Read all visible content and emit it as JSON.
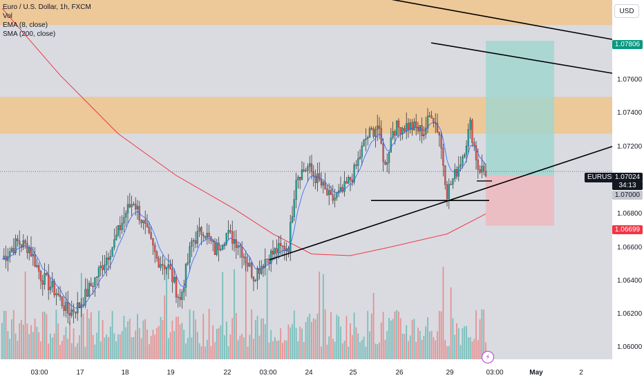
{
  "header": {
    "symbol_line": "Euro / U.S. Dollar, 1h, FXCM",
    "indicators": [
      "Vol",
      "EMA (8, close)",
      "SMA (200, close)"
    ],
    "currency_button": "USD"
  },
  "price_axis": {
    "ticks": [
      "1.07600",
      "1.07400",
      "1.07200",
      "1.07000",
      "1.06800",
      "1.06600",
      "1.06400",
      "1.06200",
      "1.06000"
    ]
  },
  "price_tags": {
    "upper": {
      "label": "1.07806",
      "bg": "#089981",
      "fg": "#ffffff"
    },
    "current": {
      "label": "1.07024",
      "sub": "34:13",
      "bg": "#131722",
      "fg": "#ffffff"
    },
    "entry": {
      "label": "1.07000",
      "bg": "#c7c9d1",
      "fg": "#131722"
    },
    "stop": {
      "label": "1.06699",
      "bg": "#f23645",
      "fg": "#ffffff"
    },
    "symbol": "EURUSD"
  },
  "time_axis": {
    "labels": [
      {
        "text": "03:00",
        "bold": false
      },
      {
        "text": "17",
        "bold": false
      },
      {
        "text": "18",
        "bold": false
      },
      {
        "text": "19",
        "bold": false
      },
      {
        "text": "22",
        "bold": false
      },
      {
        "text": "03:00",
        "bold": false
      },
      {
        "text": "24",
        "bold": false
      },
      {
        "text": "25",
        "bold": false
      },
      {
        "text": "26",
        "bold": false
      },
      {
        "text": "29",
        "bold": false
      },
      {
        "text": "03:00",
        "bold": false
      },
      {
        "text": "May",
        "bold": true
      },
      {
        "text": "2",
        "bold": false
      }
    ]
  },
  "colors": {
    "up": "#26a69a",
    "down": "#ef5350",
    "ema": "#2962ff",
    "sma": "#f23645",
    "zone": "#f0c48c",
    "profit": "#9fd6cf",
    "loss": "#efb7bd",
    "chart_bg": "#d9dbe1"
  },
  "chart_data": {
    "type": "candlestick",
    "title": "Euro / U.S. Dollar, 1h, FXCM",
    "symbol": "EURUSD",
    "ylim": [
      1.059,
      1.0805
    ],
    "x_ticks": [
      "03:00",
      "17",
      "18",
      "19",
      "22",
      "03:00",
      "24",
      "25",
      "26",
      "29",
      "03:00",
      "May",
      "2"
    ],
    "y_ticks": [
      1.076,
      1.074,
      1.072,
      1.07,
      1.068,
      1.066,
      1.064,
      1.062,
      1.06
    ],
    "close_waypoints": [
      [
        0,
        1.065
      ],
      [
        8,
        1.066
      ],
      [
        14,
        1.0657
      ],
      [
        20,
        1.064
      ],
      [
        28,
        1.063
      ],
      [
        34,
        1.0618
      ],
      [
        40,
        1.0622
      ],
      [
        48,
        1.0638
      ],
      [
        58,
        1.066
      ],
      [
        64,
        1.0678
      ],
      [
        68,
        1.0685
      ],
      [
        74,
        1.0668
      ],
      [
        80,
        1.065
      ],
      [
        86,
        1.0645
      ],
      [
        92,
        1.0625
      ],
      [
        98,
        1.066
      ],
      [
        104,
        1.0668
      ],
      [
        110,
        1.0655
      ],
      [
        116,
        1.0665
      ],
      [
        122,
        1.066
      ],
      [
        130,
        1.064
      ],
      [
        136,
        1.065
      ],
      [
        142,
        1.0655
      ],
      [
        148,
        1.0658
      ],
      [
        152,
        1.07
      ],
      [
        158,
        1.0705
      ],
      [
        164,
        1.0696
      ],
      [
        170,
        1.0685
      ],
      [
        176,
        1.069
      ],
      [
        182,
        1.0702
      ],
      [
        188,
        1.0722
      ],
      [
        194,
        1.073
      ],
      [
        198,
        1.0705
      ],
      [
        202,
        1.0728
      ],
      [
        210,
        1.073
      ],
      [
        218,
        1.0726
      ],
      [
        222,
        1.0738
      ],
      [
        226,
        1.0725
      ],
      [
        230,
        1.069
      ],
      [
        234,
        1.07
      ],
      [
        238,
        1.0712
      ],
      [
        242,
        1.073
      ],
      [
        246,
        1.0705
      ],
      [
        250,
        1.0702
      ]
    ],
    "sma_200": [
      [
        0,
        1.08
      ],
      [
        30,
        1.076
      ],
      [
        60,
        1.0725
      ],
      [
        90,
        1.07
      ],
      [
        120,
        1.068
      ],
      [
        140,
        1.0665
      ],
      [
        160,
        1.0653
      ],
      [
        180,
        1.0652
      ],
      [
        200,
        1.0657
      ],
      [
        230,
        1.0665
      ],
      [
        250,
        1.0677
      ]
    ],
    "levels": {
      "supply_zone_upper": [
        1.079,
        1.081
      ],
      "supply_zone_lower": [
        1.0725,
        1.0747
      ],
      "entry": 1.07,
      "take_profit": 1.07806,
      "stop_loss": 1.06699,
      "last_price": 1.07024,
      "horizontal_support": 1.0685
    },
    "volume": {
      "max_relative": 1.0
    }
  }
}
